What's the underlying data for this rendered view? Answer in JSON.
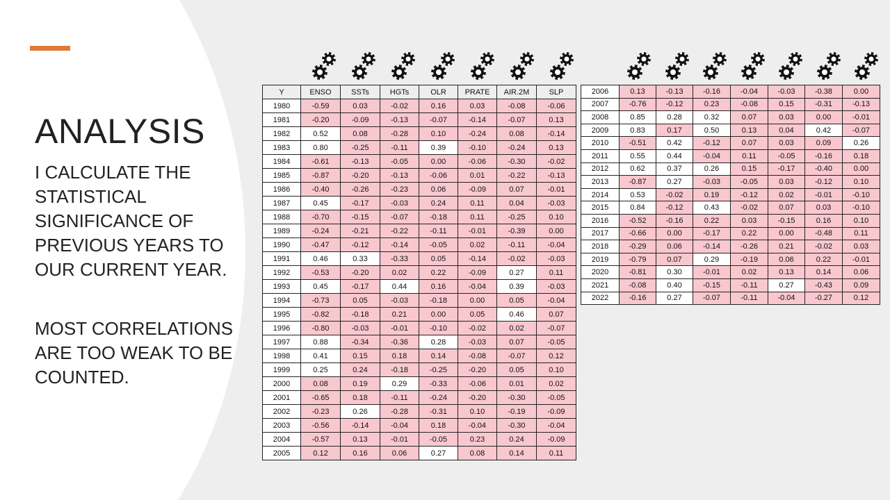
{
  "slide": {
    "title": "ANALYSIS",
    "paragraph1": "I CALCULATE THE STATISTICAL SIGNIFICANCE OF PREVIOUS YEARS TO OUR CURRENT YEAR.",
    "paragraph2": "MOST CORRELATIONS ARE TOO WEAK TO BE COUNTED."
  },
  "colors": {
    "accent": "#e07a3a",
    "highlight": "#f9c8cf",
    "background": "#eeeeee",
    "panel": "#ffffff"
  },
  "icons": {
    "column_marker": "gears-icon"
  },
  "table_left": {
    "headers": [
      "Y",
      "ENSO",
      "SSTs",
      "HGTs",
      "OLR",
      "PRATE",
      "AIR.2M",
      "SLP"
    ],
    "rows": [
      [
        "1980",
        "-0.59",
        "0.03",
        "-0.02",
        "0.16",
        "0.03",
        "-0.08",
        "-0.06"
      ],
      [
        "1981",
        "-0.20",
        "-0.09",
        "-0.13",
        "-0.07",
        "-0.14",
        "-0.07",
        "0.13"
      ],
      [
        "1982",
        "0.52",
        "0.08",
        "-0.28",
        "0.10",
        "-0.24",
        "0.08",
        "-0.14"
      ],
      [
        "1983",
        "0.80",
        "-0.25",
        "-0.11",
        "0.39",
        "-0.10",
        "-0.24",
        "0.13"
      ],
      [
        "1984",
        "-0.61",
        "-0.13",
        "-0.05",
        "0.00",
        "-0.06",
        "-0.30",
        "-0.02"
      ],
      [
        "1985",
        "-0.87",
        "-0.20",
        "-0.13",
        "-0.06",
        "0.01",
        "-0.22",
        "-0.13"
      ],
      [
        "1986",
        "-0.40",
        "-0.26",
        "-0.23",
        "0.06",
        "-0.09",
        "0.07",
        "-0.01"
      ],
      [
        "1987",
        "0.45",
        "-0.17",
        "-0.03",
        "0.24",
        "0.11",
        "0.04",
        "-0.03"
      ],
      [
        "1988",
        "-0.70",
        "-0.15",
        "-0.07",
        "-0.18",
        "0.11",
        "-0.25",
        "0.10"
      ],
      [
        "1989",
        "-0.24",
        "-0.21",
        "-0.22",
        "-0.11",
        "-0.01",
        "-0.39",
        "0.00"
      ],
      [
        "1990",
        "-0.47",
        "-0.12",
        "-0.14",
        "-0.05",
        "0.02",
        "-0.11",
        "-0.04"
      ],
      [
        "1991",
        "0.46",
        "0.33",
        "-0.33",
        "0.05",
        "-0.14",
        "-0.02",
        "-0.03"
      ],
      [
        "1992",
        "-0.53",
        "-0.20",
        "0.02",
        "0.22",
        "-0.09",
        "0.27",
        "0.11"
      ],
      [
        "1993",
        "0.45",
        "-0.17",
        "0.44",
        "0.16",
        "-0.04",
        "0.39",
        "-0.03"
      ],
      [
        "1994",
        "-0.73",
        "0.05",
        "-0.03",
        "-0.18",
        "0.00",
        "0.05",
        "-0.04"
      ],
      [
        "1995",
        "-0.82",
        "-0.18",
        "0.21",
        "0.00",
        "0.05",
        "0.46",
        "0.07"
      ],
      [
        "1996",
        "-0.80",
        "-0.03",
        "-0.01",
        "-0.10",
        "-0.02",
        "0.02",
        "-0.07"
      ],
      [
        "1997",
        "0.88",
        "-0.34",
        "-0.36",
        "0.28",
        "-0.03",
        "0.07",
        "-0.05"
      ],
      [
        "1998",
        "0.41",
        "0.15",
        "0.18",
        "0.14",
        "-0.08",
        "-0.07",
        "0.12"
      ],
      [
        "1999",
        "0.25",
        "0.24",
        "-0.18",
        "-0.25",
        "-0.20",
        "0.05",
        "0.10"
      ],
      [
        "2000",
        "0.08",
        "0.19",
        "0.29",
        "-0.33",
        "-0.06",
        "0.01",
        "0.02"
      ],
      [
        "2001",
        "-0.65",
        "0.18",
        "-0.11",
        "-0.24",
        "-0.20",
        "-0.30",
        "-0.05"
      ],
      [
        "2002",
        "-0.23",
        "0.26",
        "-0.28",
        "-0.31",
        "0.10",
        "-0.19",
        "-0.09"
      ],
      [
        "2003",
        "-0.56",
        "-0.14",
        "-0.04",
        "0.18",
        "-0.04",
        "-0.30",
        "-0.04"
      ],
      [
        "2004",
        "-0.57",
        "0.13",
        "-0.01",
        "-0.05",
        "0.23",
        "0.24",
        "-0.09"
      ],
      [
        "2005",
        "0.12",
        "0.16",
        "0.06",
        "0.27",
        "0.08",
        "0.14",
        "0.11"
      ]
    ],
    "highlight": [
      [
        1,
        1,
        1,
        1,
        1,
        1,
        1
      ],
      [
        1,
        1,
        1,
        1,
        1,
        1,
        1
      ],
      [
        0,
        1,
        1,
        1,
        1,
        1,
        1
      ],
      [
        0,
        1,
        1,
        0,
        1,
        1,
        1
      ],
      [
        1,
        1,
        1,
        1,
        1,
        1,
        1
      ],
      [
        1,
        1,
        1,
        1,
        1,
        1,
        1
      ],
      [
        1,
        1,
        1,
        1,
        1,
        1,
        1
      ],
      [
        0,
        1,
        1,
        1,
        1,
        1,
        1
      ],
      [
        1,
        1,
        1,
        1,
        1,
        1,
        1
      ],
      [
        1,
        1,
        1,
        1,
        1,
        1,
        1
      ],
      [
        1,
        1,
        1,
        1,
        1,
        1,
        1
      ],
      [
        0,
        0,
        1,
        1,
        1,
        1,
        1
      ],
      [
        1,
        1,
        1,
        1,
        1,
        0,
        1
      ],
      [
        0,
        1,
        0,
        1,
        1,
        0,
        1
      ],
      [
        1,
        1,
        1,
        1,
        1,
        1,
        1
      ],
      [
        1,
        1,
        1,
        1,
        1,
        0,
        1
      ],
      [
        1,
        1,
        1,
        1,
        1,
        1,
        1
      ],
      [
        0,
        1,
        1,
        0,
        1,
        1,
        1
      ],
      [
        0,
        1,
        1,
        1,
        1,
        1,
        1
      ],
      [
        0,
        1,
        1,
        1,
        1,
        1,
        1
      ],
      [
        1,
        1,
        0,
        1,
        1,
        1,
        1
      ],
      [
        1,
        1,
        1,
        1,
        1,
        1,
        1
      ],
      [
        1,
        0,
        1,
        1,
        1,
        1,
        1
      ],
      [
        1,
        1,
        1,
        1,
        1,
        1,
        1
      ],
      [
        1,
        1,
        1,
        1,
        1,
        1,
        1
      ],
      [
        1,
        1,
        1,
        0,
        1,
        1,
        1
      ]
    ]
  },
  "table_right": {
    "rows": [
      [
        "2006",
        "0.13",
        "-0.13",
        "-0.16",
        "-0.04",
        "-0.03",
        "-0.38",
        "0.00"
      ],
      [
        "2007",
        "-0.76",
        "-0.12",
        "0.23",
        "-0.08",
        "0.15",
        "-0.31",
        "-0.13"
      ],
      [
        "2008",
        "0.85",
        "0.28",
        "0.32",
        "0.07",
        "0.03",
        "0.00",
        "-0.01"
      ],
      [
        "2009",
        "0.83",
        "0.17",
        "0.50",
        "0.13",
        "0.04",
        "0.42",
        "-0.07"
      ],
      [
        "2010",
        "-0.51",
        "0.42",
        "-0.12",
        "0.07",
        "0.03",
        "0.09",
        "0.26"
      ],
      [
        "2011",
        "0.55",
        "0.44",
        "-0.04",
        "0.11",
        "-0.05",
        "-0.16",
        "0.18"
      ],
      [
        "2012",
        "0.62",
        "0.37",
        "0.26",
        "0.15",
        "-0.17",
        "-0.40",
        "0.00"
      ],
      [
        "2013",
        "-0.87",
        "0.27",
        "-0.03",
        "-0.05",
        "0.03",
        "-0.12",
        "0.10"
      ],
      [
        "2014",
        "0.53",
        "-0.02",
        "0.19",
        "-0.12",
        "0.02",
        "-0.01",
        "-0.10"
      ],
      [
        "2015",
        "0.84",
        "-0.12",
        "0.43",
        "-0.02",
        "0.07",
        "0.03",
        "-0.10"
      ],
      [
        "2016",
        "-0.52",
        "-0.16",
        "0.22",
        "0.03",
        "-0.15",
        "0.16",
        "0.10"
      ],
      [
        "2017",
        "-0.66",
        "0.00",
        "-0.17",
        "0.22",
        "0.00",
        "-0.48",
        "0.11"
      ],
      [
        "2018",
        "-0.29",
        "0.06",
        "-0.14",
        "-0.26",
        "0.21",
        "-0.02",
        "0.03"
      ],
      [
        "2019",
        "-0.79",
        "0.07",
        "0.29",
        "-0.19",
        "0.06",
        "0.22",
        "-0.01"
      ],
      [
        "2020",
        "-0.81",
        "0.30",
        "-0.01",
        "0.02",
        "0.13",
        "0.14",
        "0.06"
      ],
      [
        "2021",
        "-0.08",
        "0.40",
        "-0.15",
        "-0.11",
        "0.27",
        "-0.43",
        "0.09"
      ],
      [
        "2022",
        "-0.16",
        "0.27",
        "-0.07",
        "-0.11",
        "-0.04",
        "-0.27",
        "0.12"
      ]
    ],
    "highlight": [
      [
        1,
        1,
        1,
        1,
        1,
        1,
        1
      ],
      [
        1,
        1,
        1,
        1,
        1,
        1,
        1
      ],
      [
        0,
        0,
        0,
        1,
        1,
        1,
        1
      ],
      [
        0,
        1,
        0,
        1,
        1,
        0,
        1
      ],
      [
        1,
        0,
        1,
        1,
        1,
        1,
        0
      ],
      [
        0,
        0,
        1,
        1,
        1,
        1,
        1
      ],
      [
        0,
        0,
        0,
        1,
        1,
        1,
        1
      ],
      [
        1,
        0,
        1,
        1,
        1,
        1,
        1
      ],
      [
        0,
        1,
        1,
        1,
        1,
        1,
        1
      ],
      [
        0,
        1,
        0,
        1,
        1,
        1,
        1
      ],
      [
        1,
        1,
        1,
        1,
        1,
        1,
        1
      ],
      [
        1,
        1,
        1,
        1,
        1,
        1,
        1
      ],
      [
        1,
        1,
        1,
        1,
        1,
        1,
        1
      ],
      [
        1,
        1,
        0,
        1,
        1,
        1,
        1
      ],
      [
        1,
        0,
        1,
        1,
        1,
        1,
        1
      ],
      [
        1,
        0,
        1,
        1,
        0,
        1,
        1
      ],
      [
        1,
        0,
        1,
        1,
        1,
        1,
        1
      ]
    ]
  }
}
